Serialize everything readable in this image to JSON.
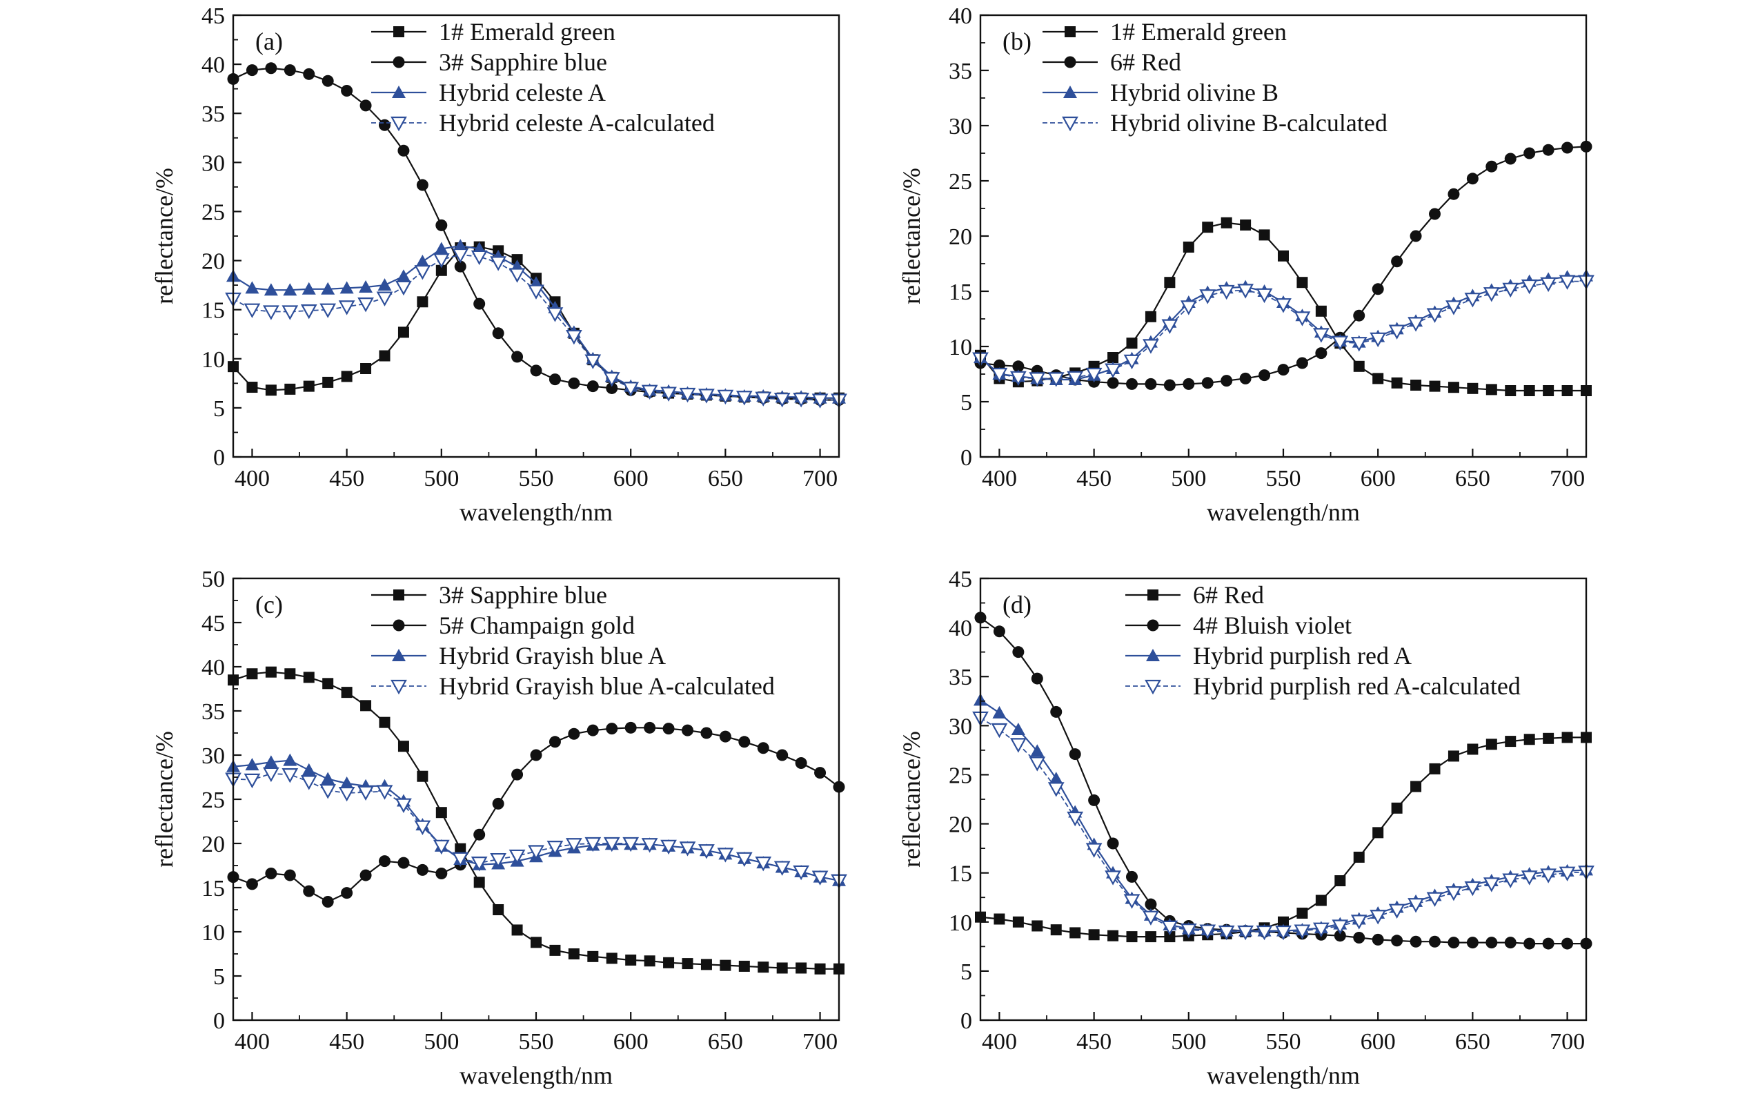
{
  "colors": {
    "black_series": "#111111",
    "blue_series": "#2e4f9a",
    "axis": "#111111"
  },
  "chart_data": [
    {
      "type": "line",
      "panel_label": "(a)",
      "xlabel": "wavelength/nm",
      "ylabel": "reflectance/%",
      "xlim": [
        390,
        710
      ],
      "ylim": [
        0,
        45
      ],
      "xticks": [
        400,
        450,
        500,
        550,
        600,
        650,
        700
      ],
      "yticks": [
        0,
        5,
        10,
        15,
        20,
        25,
        30,
        35,
        40,
        45
      ],
      "grid": false,
      "legend_position": "top-right",
      "x": [
        390,
        400,
        410,
        420,
        430,
        440,
        450,
        460,
        470,
        480,
        490,
        500,
        510,
        520,
        530,
        540,
        550,
        560,
        570,
        580,
        590,
        600,
        610,
        620,
        630,
        640,
        650,
        660,
        670,
        680,
        690,
        700,
        710
      ],
      "series": [
        {
          "name": "1# Emerald green",
          "marker": "square",
          "color": "#111111",
          "values": [
            9.2,
            7.1,
            6.8,
            6.9,
            7.2,
            7.6,
            8.2,
            9.0,
            10.3,
            12.7,
            15.8,
            19.0,
            21.3,
            21.4,
            21.0,
            20.1,
            18.2,
            15.8,
            12.6,
            9.9,
            8.1,
            7.1,
            6.7,
            6.5,
            6.4,
            6.3,
            6.2,
            6.1,
            6.1,
            6.0,
            6.0,
            6.0,
            6.0
          ]
        },
        {
          "name": "3# Sapphire blue",
          "marker": "circle",
          "color": "#111111",
          "values": [
            38.5,
            39.4,
            39.6,
            39.4,
            39.0,
            38.3,
            37.3,
            35.8,
            33.8,
            31.2,
            27.7,
            23.6,
            19.4,
            15.6,
            12.6,
            10.2,
            8.8,
            7.9,
            7.5,
            7.2,
            7.0,
            6.8,
            6.6,
            6.5,
            6.4,
            6.3,
            6.2,
            6.1,
            6.0,
            5.9,
            5.9,
            5.8,
            5.8
          ]
        },
        {
          "name": "Hybrid celeste A",
          "marker": "triangle-up",
          "color": "#2e4f9a",
          "values": [
            18.4,
            17.2,
            17.0,
            17.0,
            17.1,
            17.1,
            17.2,
            17.3,
            17.5,
            18.4,
            19.9,
            21.2,
            21.5,
            21.2,
            20.4,
            19.4,
            17.7,
            15.2,
            12.7,
            10.0,
            8.2,
            7.2,
            6.8,
            6.7,
            6.5,
            6.4,
            6.3,
            6.2,
            6.2,
            6.1,
            6.1,
            6.0,
            6.0
          ]
        },
        {
          "name": "Hybrid celeste A-calculated",
          "marker": "triangle-down-open",
          "color": "#2e4f9a",
          "values": [
            16.1,
            15.0,
            14.8,
            14.8,
            14.9,
            15.0,
            15.3,
            15.6,
            16.2,
            17.3,
            18.9,
            20.1,
            20.6,
            20.4,
            19.8,
            18.6,
            16.9,
            14.6,
            12.3,
            9.8,
            8.0,
            7.0,
            6.7,
            6.5,
            6.4,
            6.3,
            6.2,
            6.1,
            6.0,
            5.9,
            5.9,
            5.8,
            5.8
          ]
        }
      ]
    },
    {
      "type": "line",
      "panel_label": "(b)",
      "xlabel": "wavelength/nm",
      "ylabel": "reflectance/%",
      "xlim": [
        390,
        710
      ],
      "ylim": [
        0,
        40
      ],
      "xticks": [
        400,
        450,
        500,
        550,
        600,
        650,
        700
      ],
      "yticks": [
        0,
        5,
        10,
        15,
        20,
        25,
        30,
        35,
        40
      ],
      "grid": false,
      "legend_position": "top-right",
      "x": [
        390,
        400,
        410,
        420,
        430,
        440,
        450,
        460,
        470,
        480,
        490,
        500,
        510,
        520,
        530,
        540,
        550,
        560,
        570,
        580,
        590,
        600,
        610,
        620,
        630,
        640,
        650,
        660,
        670,
        680,
        690,
        700,
        710
      ],
      "series": [
        {
          "name": "1# Emerald green",
          "marker": "square",
          "color": "#111111",
          "values": [
            9.2,
            7.1,
            6.8,
            6.9,
            7.2,
            7.6,
            8.2,
            9.0,
            10.3,
            12.7,
            15.8,
            19.0,
            20.8,
            21.2,
            21.0,
            20.1,
            18.2,
            15.8,
            13.2,
            10.3,
            8.2,
            7.1,
            6.7,
            6.5,
            6.4,
            6.3,
            6.2,
            6.1,
            6.0,
            6.0,
            6.0,
            6.0,
            6.0
          ]
        },
        {
          "name": "6# Red",
          "marker": "circle",
          "color": "#111111",
          "values": [
            8.5,
            8.3,
            8.2,
            7.8,
            7.4,
            7.0,
            6.8,
            6.7,
            6.6,
            6.6,
            6.5,
            6.6,
            6.7,
            6.9,
            7.1,
            7.4,
            7.9,
            8.5,
            9.4,
            10.8,
            12.8,
            15.2,
            17.7,
            20.0,
            22.0,
            23.8,
            25.2,
            26.3,
            27.0,
            27.5,
            27.8,
            28.0,
            28.1
          ]
        },
        {
          "name": "Hybrid olivine B",
          "marker": "triangle-up",
          "color": "#2e4f9a",
          "values": [
            9.0,
            7.5,
            7.3,
            7.1,
            7.0,
            7.0,
            7.4,
            8.0,
            8.9,
            10.4,
            12.2,
            14.0,
            14.9,
            15.3,
            15.4,
            15.0,
            14.0,
            12.8,
            11.3,
            10.5,
            10.4,
            10.9,
            11.6,
            12.3,
            13.1,
            13.9,
            14.6,
            15.1,
            15.5,
            15.9,
            16.1,
            16.3,
            16.4
          ]
        },
        {
          "name": "Hybrid olivine B-calculated",
          "marker": "triangle-down-open",
          "color": "#2e4f9a",
          "values": [
            8.9,
            7.5,
            7.2,
            7.1,
            7.1,
            7.2,
            7.5,
            7.9,
            8.7,
            10.1,
            11.9,
            13.6,
            14.6,
            15.0,
            15.1,
            14.7,
            13.8,
            12.6,
            11.1,
            10.4,
            10.3,
            10.7,
            11.4,
            12.1,
            12.9,
            13.6,
            14.3,
            14.8,
            15.2,
            15.5,
            15.7,
            15.9,
            15.9
          ]
        }
      ]
    },
    {
      "type": "line",
      "panel_label": "(c)",
      "xlabel": "wavelength/nm",
      "ylabel": "reflectance/%",
      "xlim": [
        390,
        710
      ],
      "ylim": [
        0,
        50
      ],
      "xticks": [
        400,
        450,
        500,
        550,
        600,
        650,
        700
      ],
      "yticks": [
        0,
        5,
        10,
        15,
        20,
        25,
        30,
        35,
        40,
        45,
        50
      ],
      "grid": false,
      "legend_position": "top-right",
      "x": [
        390,
        400,
        410,
        420,
        430,
        440,
        450,
        460,
        470,
        480,
        490,
        500,
        510,
        520,
        530,
        540,
        550,
        560,
        570,
        580,
        590,
        600,
        610,
        620,
        630,
        640,
        650,
        660,
        670,
        680,
        690,
        700,
        710
      ],
      "series": [
        {
          "name": "3# Sapphire blue",
          "marker": "square",
          "color": "#111111",
          "values": [
            38.5,
            39.2,
            39.4,
            39.2,
            38.8,
            38.1,
            37.1,
            35.6,
            33.7,
            31.0,
            27.6,
            23.5,
            19.4,
            15.6,
            12.5,
            10.2,
            8.8,
            7.9,
            7.5,
            7.2,
            7.0,
            6.8,
            6.7,
            6.5,
            6.4,
            6.3,
            6.2,
            6.1,
            6.0,
            5.9,
            5.9,
            5.8,
            5.8
          ]
        },
        {
          "name": "5# Champaign gold",
          "marker": "circle",
          "color": "#111111",
          "values": [
            16.2,
            15.4,
            16.6,
            16.4,
            14.6,
            13.4,
            14.4,
            16.4,
            18.0,
            17.8,
            17.0,
            16.6,
            17.6,
            21.0,
            24.5,
            27.8,
            30.0,
            31.5,
            32.4,
            32.8,
            33.0,
            33.1,
            33.1,
            33.0,
            32.8,
            32.5,
            32.1,
            31.5,
            30.8,
            30.0,
            29.1,
            28.0,
            26.4
          ]
        },
        {
          "name": "Hybrid Grayish blue A",
          "marker": "triangle-up",
          "color": "#2e4f9a",
          "values": [
            28.7,
            28.9,
            29.2,
            29.4,
            28.3,
            27.3,
            26.8,
            26.5,
            26.5,
            24.8,
            22.1,
            19.7,
            18.2,
            17.6,
            17.7,
            18.0,
            18.5,
            19.1,
            19.5,
            19.8,
            19.9,
            19.9,
            19.9,
            19.7,
            19.5,
            19.2,
            18.8,
            18.3,
            17.8,
            17.3,
            16.8,
            16.2,
            15.8
          ]
        },
        {
          "name": "Hybrid Grayish blue A-calculated",
          "marker": "triangle-down-open",
          "color": "#2e4f9a",
          "values": [
            27.3,
            27.2,
            27.9,
            27.8,
            27.0,
            26.0,
            25.7,
            25.8,
            25.9,
            24.4,
            21.9,
            19.7,
            18.3,
            17.8,
            18.2,
            18.6,
            19.1,
            19.6,
            19.9,
            20.0,
            20.0,
            20.0,
            19.9,
            19.7,
            19.5,
            19.2,
            18.8,
            18.3,
            17.8,
            17.3,
            16.8,
            16.2,
            15.8
          ]
        }
      ]
    },
    {
      "type": "line",
      "panel_label": "(d)",
      "xlabel": "wavelength/nm",
      "ylabel": "reflectance/%",
      "xlim": [
        390,
        710
      ],
      "ylim": [
        0,
        45
      ],
      "xticks": [
        400,
        450,
        500,
        550,
        600,
        650,
        700
      ],
      "yticks": [
        0,
        5,
        10,
        15,
        20,
        25,
        30,
        35,
        40,
        45
      ],
      "grid": false,
      "legend_position": "top-right",
      "x": [
        390,
        400,
        410,
        420,
        430,
        440,
        450,
        460,
        470,
        480,
        490,
        500,
        510,
        520,
        530,
        540,
        550,
        560,
        570,
        580,
        590,
        600,
        610,
        620,
        630,
        640,
        650,
        660,
        670,
        680,
        690,
        700,
        710
      ],
      "series": [
        {
          "name": "6# Red",
          "marker": "square",
          "color": "#111111",
          "values": [
            10.5,
            10.3,
            10.0,
            9.6,
            9.2,
            8.9,
            8.7,
            8.6,
            8.5,
            8.5,
            8.5,
            8.6,
            8.7,
            8.8,
            9.0,
            9.4,
            10.0,
            10.9,
            12.2,
            14.2,
            16.6,
            19.1,
            21.6,
            23.8,
            25.6,
            26.9,
            27.6,
            28.1,
            28.4,
            28.6,
            28.7,
            28.8,
            28.8
          ]
        },
        {
          "name": "4# Bluish violet",
          "marker": "circle",
          "color": "#111111",
          "values": [
            41.0,
            39.6,
            37.5,
            34.8,
            31.4,
            27.1,
            22.4,
            18.0,
            14.6,
            11.8,
            10.1,
            9.6,
            9.3,
            9.2,
            9.1,
            9.0,
            8.9,
            8.8,
            8.7,
            8.6,
            8.4,
            8.2,
            8.1,
            8.0,
            8.0,
            7.9,
            7.9,
            7.9,
            7.9,
            7.8,
            7.8,
            7.8,
            7.8
          ]
        },
        {
          "name": "Hybrid purplish red A",
          "marker": "triangle-up",
          "color": "#2e4f9a",
          "values": [
            32.6,
            31.3,
            29.6,
            27.4,
            24.6,
            21.2,
            17.9,
            15.0,
            12.4,
            10.7,
            9.7,
            9.3,
            9.2,
            9.1,
            9.1,
            9.1,
            9.1,
            9.2,
            9.4,
            9.8,
            10.3,
            10.9,
            11.5,
            12.1,
            12.7,
            13.3,
            13.8,
            14.2,
            14.6,
            14.9,
            15.1,
            15.2,
            15.3
          ]
        },
        {
          "name": "Hybrid purplish red A-calculated",
          "marker": "triangle-down-open",
          "color": "#2e4f9a",
          "values": [
            30.8,
            29.6,
            28.1,
            26.2,
            23.6,
            20.6,
            17.4,
            14.6,
            12.2,
            10.5,
            9.5,
            9.2,
            9.1,
            9.0,
            9.0,
            9.0,
            9.0,
            9.1,
            9.3,
            9.6,
            10.1,
            10.6,
            11.2,
            11.8,
            12.4,
            13.0,
            13.5,
            13.9,
            14.3,
            14.6,
            14.8,
            15.0,
            15.1
          ]
        }
      ]
    }
  ]
}
